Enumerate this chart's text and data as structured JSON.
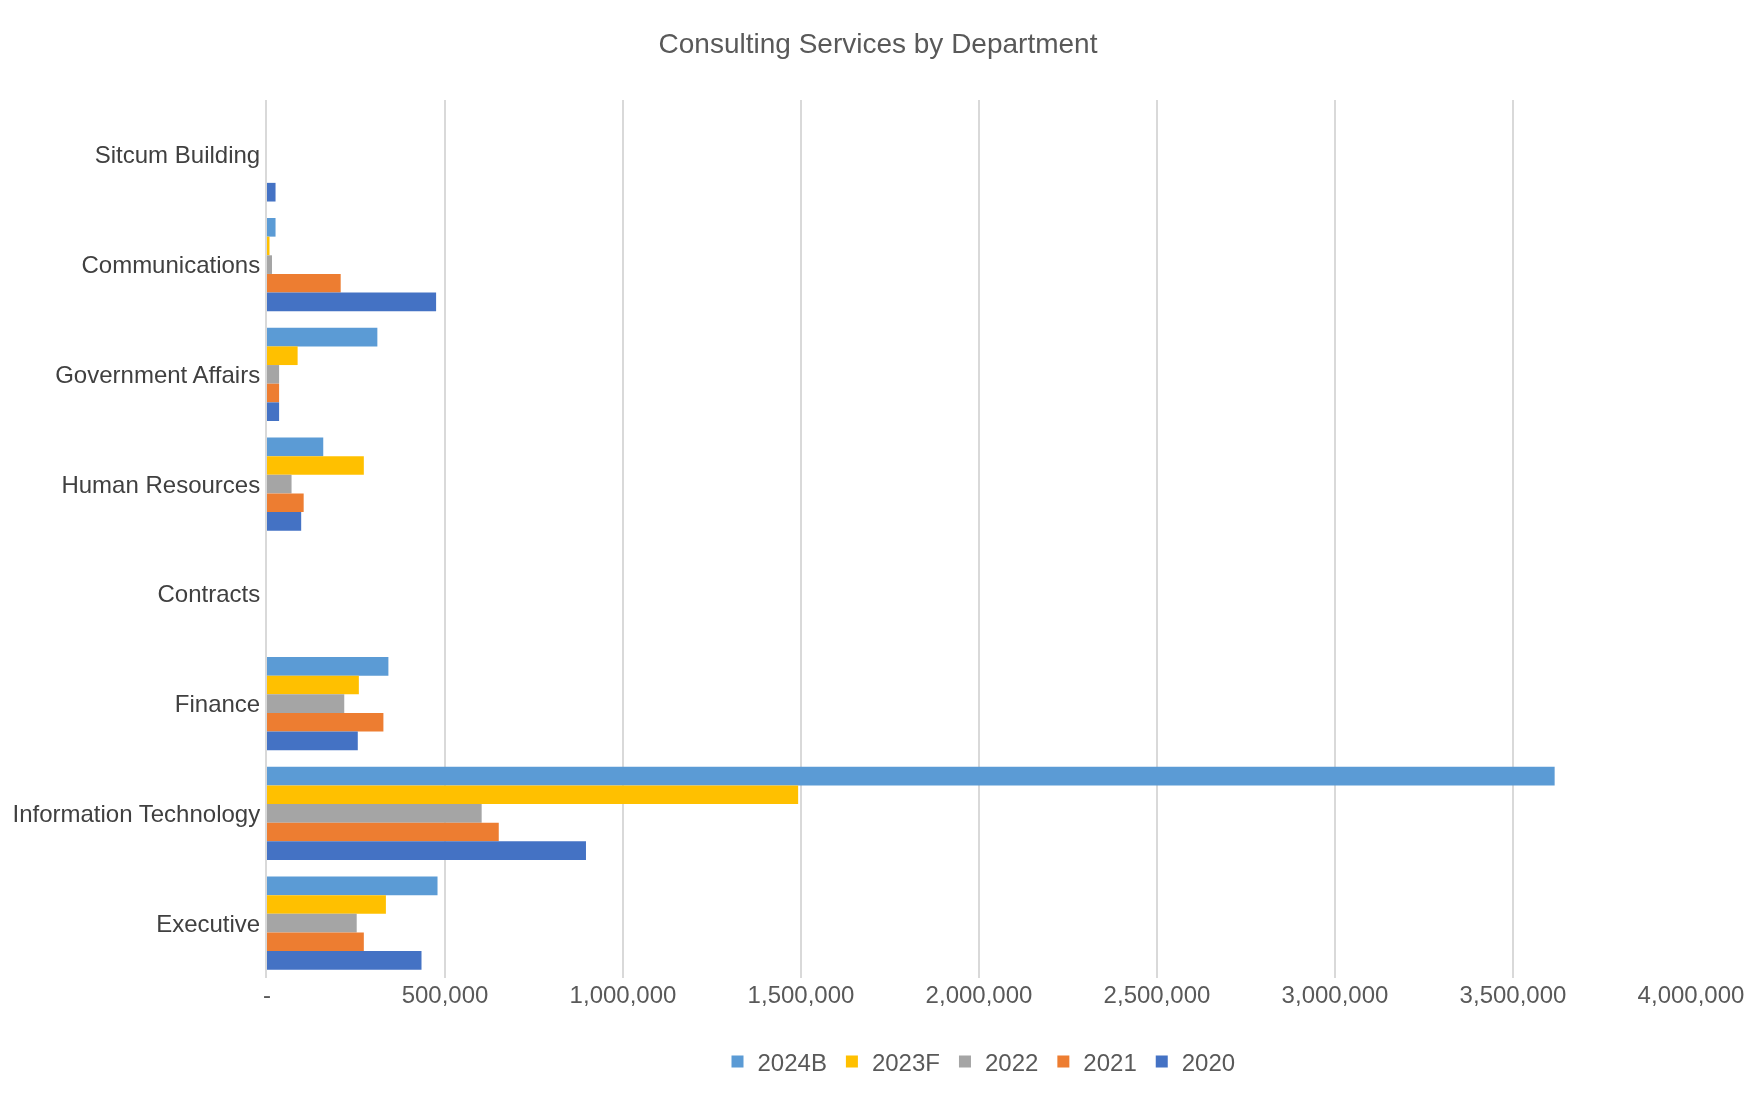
{
  "chart_data": {
    "type": "bar",
    "orientation": "horizontal",
    "title": "Consulting Services by Department",
    "categories": [
      "Sitcum Building",
      "Communications",
      "Government Affairs",
      "Human Resources",
      "Contracts",
      "Finance",
      "Information Technology",
      "Executive"
    ],
    "series": [
      {
        "name": "2024B",
        "color": "#5b9bd5",
        "values": [
          0,
          24000,
          310000,
          158000,
          0,
          341000,
          3617000,
          479000
        ]
      },
      {
        "name": "2023F",
        "color": "#ffc000",
        "values": [
          0,
          7000,
          86000,
          272000,
          0,
          258000,
          1492000,
          334000
        ]
      },
      {
        "name": "2022",
        "color": "#a5a5a5",
        "values": [
          0,
          14000,
          34000,
          69000,
          0,
          217000,
          603000,
          252000
        ]
      },
      {
        "name": "2021",
        "color": "#ed7d31",
        "values": [
          0,
          207000,
          34000,
          103000,
          0,
          327000,
          651000,
          272000
        ]
      },
      {
        "name": "2020",
        "color": "#4472c4",
        "values": [
          24000,
          475000,
          34000,
          96000,
          0,
          255000,
          896000,
          434000
        ]
      }
    ],
    "xlim": [
      0,
      4000000
    ],
    "xticks": [
      {
        "value": 0,
        "label": "-"
      },
      {
        "value": 500000,
        "label": "500,000"
      },
      {
        "value": 1000000,
        "label": "1,000,000"
      },
      {
        "value": 1500000,
        "label": "1,500,000"
      },
      {
        "value": 2000000,
        "label": "2,000,000"
      },
      {
        "value": 2500000,
        "label": "2,500,000"
      },
      {
        "value": 3000000,
        "label": "3,000,000"
      },
      {
        "value": 3500000,
        "label": "3,500,000"
      },
      {
        "value": 4000000,
        "label": "4,000,000"
      }
    ],
    "grid": "x",
    "legend": "bottom"
  }
}
